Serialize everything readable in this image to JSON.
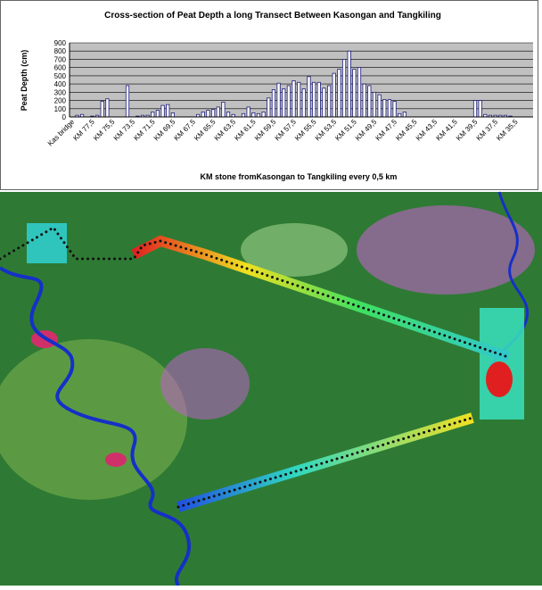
{
  "chart_data": {
    "type": "bar",
    "title": "Cross-section of Peat Depth a long Transect Between Kasongan and Tangkiling",
    "y_label": "Peat Depth (cm)",
    "x_label": "KM stone fromKasongan to Tangkiling every 0,5 km",
    "categories": [
      "Kas bridge",
      null,
      null,
      null,
      "KM 77,5",
      null,
      null,
      null,
      "KM 75,5",
      null,
      null,
      null,
      "KM 73,5",
      null,
      null,
      null,
      "KM 71,5",
      null,
      null,
      null,
      "KM 69,5",
      null,
      null,
      null,
      "KM 67,5",
      null,
      null,
      null,
      "KM 65,5",
      null,
      null,
      null,
      "KM 63,5",
      null,
      null,
      null,
      "KM 61,5",
      null,
      null,
      null,
      "KM 59,5",
      null,
      null,
      null,
      "KM 57,5",
      null,
      null,
      null,
      "KM 55,5",
      null,
      null,
      null,
      "KM 53,5",
      null,
      null,
      null,
      "KM 51,5",
      null,
      null,
      null,
      "KM 49,5",
      null,
      null,
      null,
      "KM 47,5",
      null,
      null,
      null,
      "KM 45,5",
      null,
      null,
      null,
      "KM 43,5",
      null,
      null,
      null,
      "KM 41,5",
      null,
      null,
      null,
      "KM 39,5",
      null,
      null,
      null,
      "KM 37,5",
      null,
      null,
      null,
      "KM 35,5",
      null,
      null,
      null
    ],
    "values": [
      0,
      20,
      30,
      0,
      10,
      20,
      190,
      220,
      0,
      0,
      0,
      380,
      0,
      10,
      20,
      20,
      60,
      80,
      140,
      150,
      50,
      0,
      0,
      0,
      0,
      30,
      60,
      80,
      90,
      120,
      180,
      60,
      30,
      0,
      40,
      120,
      50,
      40,
      60,
      230,
      330,
      410,
      340,
      380,
      440,
      420,
      340,
      490,
      420,
      420,
      350,
      380,
      530,
      580,
      700,
      800,
      580,
      600,
      400,
      380,
      300,
      270,
      210,
      210,
      190,
      40,
      60,
      0,
      0,
      0,
      0,
      0,
      0,
      0,
      0,
      0,
      0,
      0,
      0,
      0,
      200,
      200,
      30,
      20,
      20,
      20,
      20,
      10,
      0,
      0,
      0,
      0
    ],
    "color": "#ffffff",
    "edge_color": "#1a1a7a",
    "ylim": [
      0,
      900
    ],
    "yticks": [
      0,
      100,
      200,
      300,
      400,
      500,
      600,
      700,
      800,
      900
    ],
    "grid": true
  }
}
